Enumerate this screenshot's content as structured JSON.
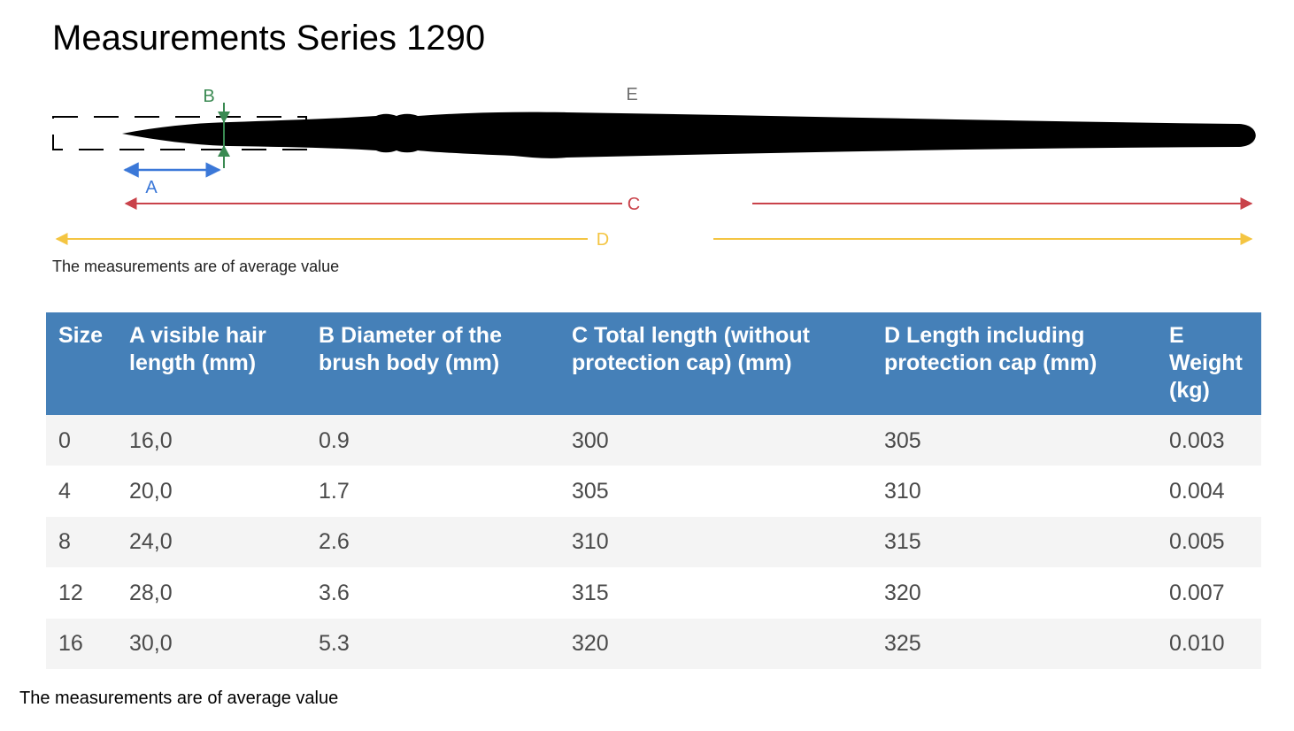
{
  "title": "Measurements Series 1290",
  "diagram": {
    "labels": {
      "a": "A",
      "b": "B",
      "c": "C",
      "d": "D",
      "e": "E"
    },
    "colors": {
      "a": "#3b78d8",
      "b": "#3a8a52",
      "c": "#c9424a",
      "d": "#f4c542",
      "e": "#707070",
      "brush": "#000000"
    },
    "note": "The measurements are of average value"
  },
  "table": {
    "header_color": "#4580b8",
    "columns": [
      "Size",
      "A visible hair length (mm)",
      "B Diameter of the brush body (mm)",
      "C Total length (without protection cap) (mm)",
      "D Length including protection cap (mm)",
      "E Weight (kg)"
    ],
    "rows": [
      [
        "0",
        "16,0",
        "0.9",
        "300",
        "305",
        "0.003"
      ],
      [
        "4",
        "20,0",
        "1.7",
        "305",
        "310",
        "0.004"
      ],
      [
        "8",
        "24,0",
        "2.6",
        "310",
        "315",
        "0.005"
      ],
      [
        "12",
        "28,0",
        "3.6",
        "315",
        "320",
        "0.007"
      ],
      [
        "16",
        "30,0",
        "5.3",
        "320",
        "325",
        "0.010"
      ]
    ]
  },
  "footer_note": "The measurements are of average value"
}
